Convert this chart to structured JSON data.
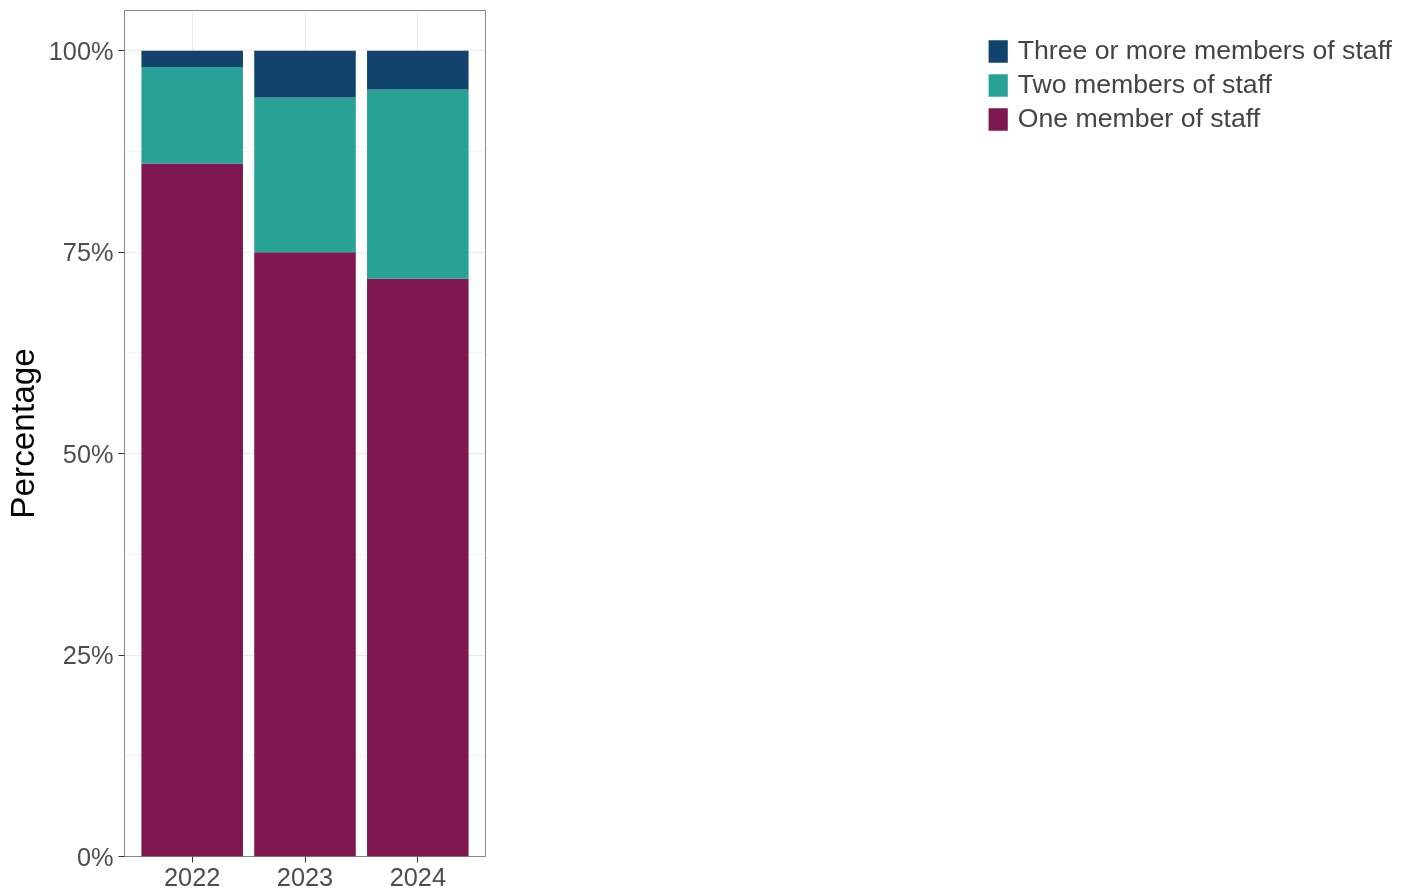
{
  "chart_data": {
    "type": "bar",
    "stacked": true,
    "ylabel": "Percentage",
    "categories": [
      "2022",
      "2023",
      "2024"
    ],
    "series": [
      {
        "name": "One member of staff",
        "color": "#7d174d",
        "values": [
          86,
          75,
          71.7
        ]
      },
      {
        "name": "Two members of staff",
        "color": "#28a197",
        "values": [
          12,
          19.2,
          23.5
        ]
      },
      {
        "name": "Three or more members of staff",
        "color": "#12436d",
        "values": [
          2,
          5.8,
          4.8
        ]
      }
    ],
    "ylim": [
      0,
      105
    ],
    "yticks": [
      {
        "value": 0,
        "label": "0%"
      },
      {
        "value": 25,
        "label": "25%"
      },
      {
        "value": 50,
        "label": "50%"
      },
      {
        "value": 75,
        "label": "75%"
      },
      {
        "value": 100,
        "label": "100%"
      }
    ],
    "grid": true,
    "legend": "right"
  }
}
